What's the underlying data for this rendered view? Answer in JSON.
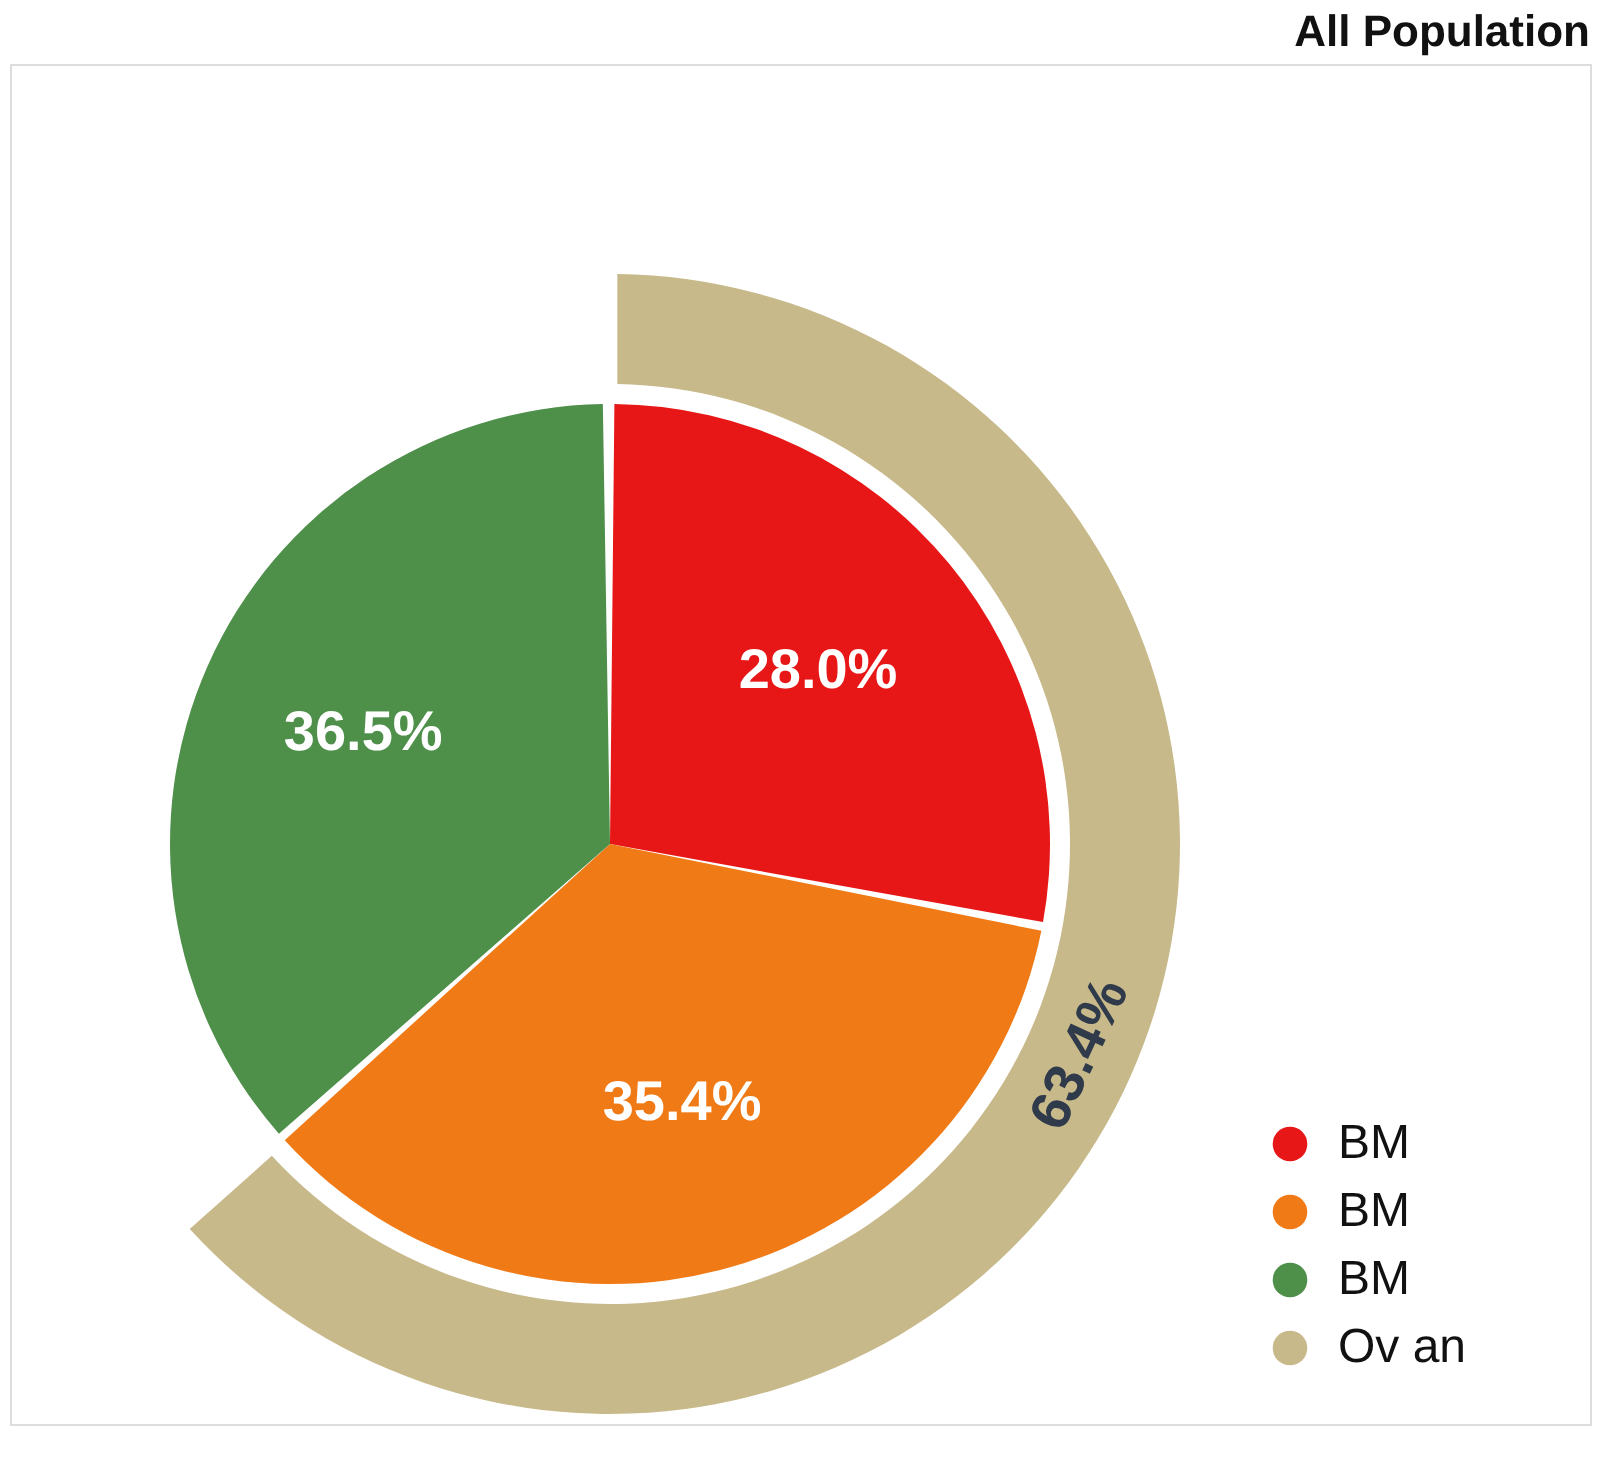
{
  "chart_data": {
    "type": "pie",
    "title": "All Population",
    "categories": [
      "BM",
      "BM",
      "BM",
      "Ov an"
    ],
    "colors": [
      "#e81717",
      "#f07a16",
      "#4e8f4a",
      "#c8b98b"
    ],
    "legend": "bottom right",
    "series": [
      {
        "values": [
          28.0,
          35.4,
          36.5,
          null
        ],
        "value_labels": [
          "28.0%",
          "35.4%",
          "36.5%",
          null
        ]
      },
      {
        "type": "donut",
        "values": [
          null,
          null,
          null,
          63.4
        ],
        "value_labels": [
          null,
          null,
          null,
          "63.4%"
        ]
      }
    ]
  }
}
